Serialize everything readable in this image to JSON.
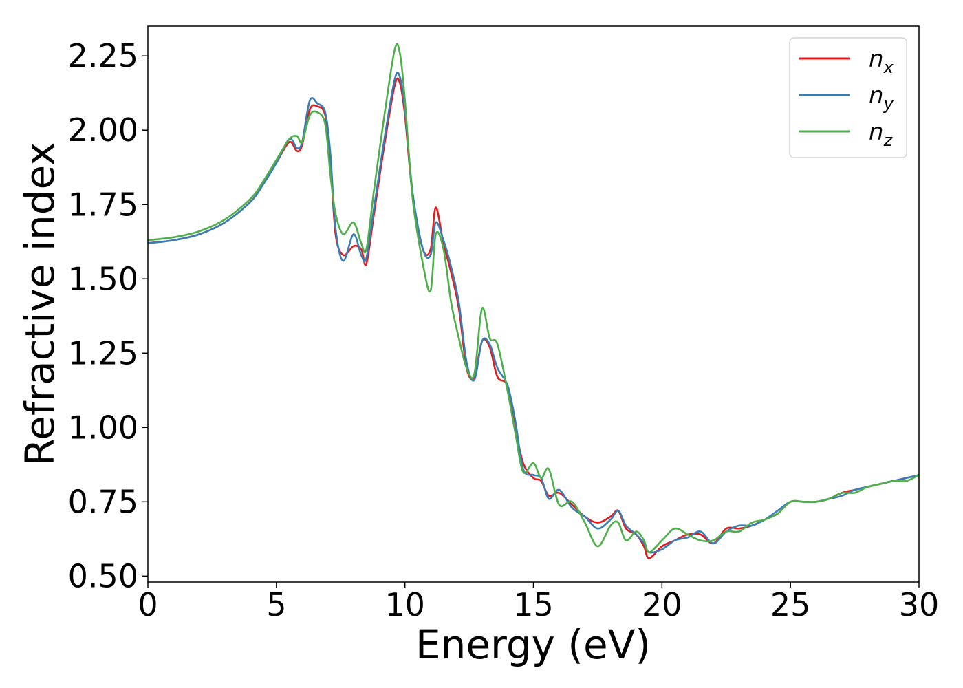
{
  "chart_data": {
    "type": "line",
    "xlabel": "Energy (eV)",
    "ylabel": "Refractive index",
    "xlim": [
      0,
      30
    ],
    "ylim": [
      0.48,
      2.35
    ],
    "xticks": [
      0,
      5,
      10,
      15,
      20,
      25,
      30
    ],
    "xtick_labels": [
      "0",
      "5",
      "10",
      "15",
      "20",
      "25",
      "30"
    ],
    "yticks": [
      0.5,
      0.75,
      1.0,
      1.25,
      1.5,
      1.75,
      2.0,
      2.25
    ],
    "ytick_labels": [
      "0.50",
      "0.75",
      "1.00",
      "1.25",
      "1.50",
      "1.75",
      "2.00",
      "2.25"
    ],
    "grid": false,
    "legend_position": "top-right",
    "series": [
      {
        "name": "n",
        "subscript": "x",
        "color": "#e41a1c",
        "x": [
          0,
          1,
          2,
          3,
          4,
          4.5,
          5,
          5.5,
          5.8,
          6.0,
          6.3,
          6.6,
          6.9,
          7.1,
          7.3,
          7.6,
          8.0,
          8.3,
          8.5,
          8.8,
          9.2,
          9.6,
          9.8,
          10.0,
          10.3,
          10.7,
          11.0,
          11.2,
          11.5,
          11.8,
          12.1,
          12.4,
          12.7,
          13.0,
          13.3,
          13.6,
          14.0,
          14.3,
          14.6,
          15.0,
          15.3,
          15.6,
          16.0,
          16.5,
          17.0,
          17.5,
          18.0,
          18.3,
          18.6,
          19.0,
          19.3,
          19.5,
          20.0,
          20.5,
          21.0,
          21.5,
          22.0,
          22.5,
          23.0,
          23.5,
          24.0,
          24.5,
          25.0,
          25.5,
          26.0,
          26.5,
          27.0,
          27.5,
          28.0,
          28.5,
          29.0,
          29.5,
          30.0
        ],
        "y": [
          1.62,
          1.63,
          1.65,
          1.69,
          1.76,
          1.82,
          1.89,
          1.96,
          1.93,
          1.95,
          2.07,
          2.08,
          2.05,
          1.9,
          1.65,
          1.58,
          1.61,
          1.6,
          1.55,
          1.72,
          1.95,
          2.15,
          2.16,
          2.05,
          1.78,
          1.6,
          1.6,
          1.74,
          1.62,
          1.52,
          1.4,
          1.2,
          1.17,
          1.29,
          1.27,
          1.17,
          1.14,
          1.0,
          0.88,
          0.83,
          0.82,
          0.77,
          0.78,
          0.74,
          0.7,
          0.68,
          0.7,
          0.72,
          0.66,
          0.64,
          0.6,
          0.56,
          0.6,
          0.62,
          0.64,
          0.64,
          0.61,
          0.66,
          0.66,
          0.67,
          0.69,
          0.71,
          0.75,
          0.75,
          0.75,
          0.76,
          0.78,
          0.79,
          0.8,
          0.81,
          0.82,
          0.83,
          0.84
        ]
      },
      {
        "name": "n",
        "subscript": "y",
        "color": "#377eb8",
        "x": [
          0,
          1,
          2,
          3,
          4,
          4.5,
          5,
          5.5,
          5.8,
          6.0,
          6.3,
          6.6,
          6.9,
          7.1,
          7.3,
          7.6,
          8.0,
          8.3,
          8.5,
          8.8,
          9.2,
          9.6,
          9.8,
          10.0,
          10.3,
          10.7,
          11.0,
          11.2,
          11.5,
          11.8,
          12.1,
          12.4,
          12.7,
          13.0,
          13.3,
          13.6,
          14.0,
          14.3,
          14.6,
          15.0,
          15.3,
          15.6,
          16.0,
          16.5,
          17.0,
          17.5,
          18.0,
          18.3,
          18.6,
          19.0,
          19.3,
          19.5,
          20.0,
          20.5,
          21.0,
          21.5,
          22.0,
          22.5,
          23.0,
          23.5,
          24.0,
          24.5,
          25.0,
          25.5,
          26.0,
          26.5,
          27.0,
          27.5,
          28.0,
          28.5,
          29.0,
          29.5,
          30.0
        ],
        "y": [
          1.62,
          1.63,
          1.65,
          1.69,
          1.76,
          1.82,
          1.89,
          1.97,
          1.94,
          1.96,
          2.1,
          2.09,
          2.06,
          1.92,
          1.67,
          1.56,
          1.65,
          1.58,
          1.57,
          1.74,
          1.97,
          2.17,
          2.18,
          2.07,
          1.79,
          1.6,
          1.58,
          1.69,
          1.63,
          1.54,
          1.42,
          1.22,
          1.16,
          1.29,
          1.28,
          1.2,
          1.14,
          1.02,
          0.86,
          0.84,
          0.83,
          0.76,
          0.79,
          0.73,
          0.7,
          0.66,
          0.69,
          0.72,
          0.67,
          0.64,
          0.61,
          0.58,
          0.59,
          0.62,
          0.63,
          0.65,
          0.61,
          0.65,
          0.67,
          0.67,
          0.69,
          0.72,
          0.75,
          0.75,
          0.75,
          0.76,
          0.77,
          0.79,
          0.8,
          0.81,
          0.82,
          0.83,
          0.84
        ]
      },
      {
        "name": "n",
        "subscript": "z",
        "color": "#4daf4a",
        "x": [
          0,
          1,
          2,
          3,
          4,
          4.5,
          5,
          5.5,
          5.8,
          6.0,
          6.3,
          6.6,
          6.9,
          7.1,
          7.3,
          7.6,
          8.0,
          8.3,
          8.5,
          8.8,
          9.2,
          9.6,
          9.8,
          10.0,
          10.3,
          10.7,
          11.0,
          11.2,
          11.5,
          11.8,
          12.1,
          12.4,
          12.7,
          13.0,
          13.3,
          13.6,
          14.0,
          14.3,
          14.6,
          15.0,
          15.3,
          15.6,
          16.0,
          16.5,
          17.0,
          17.5,
          18.0,
          18.3,
          18.6,
          19.0,
          19.3,
          19.5,
          20.0,
          20.5,
          21.0,
          21.5,
          22.0,
          22.5,
          23.0,
          23.5,
          24.0,
          24.5,
          25.0,
          25.5,
          26.0,
          26.5,
          27.0,
          27.5,
          28.0,
          28.5,
          29.0,
          29.5,
          30.0
        ],
        "y": [
          1.63,
          1.64,
          1.66,
          1.7,
          1.77,
          1.83,
          1.9,
          1.97,
          1.98,
          1.96,
          2.05,
          2.06,
          2.02,
          1.85,
          1.72,
          1.65,
          1.69,
          1.62,
          1.6,
          1.8,
          2.05,
          2.27,
          2.26,
          2.1,
          1.77,
          1.55,
          1.46,
          1.65,
          1.6,
          1.42,
          1.3,
          1.2,
          1.18,
          1.4,
          1.3,
          1.28,
          1.12,
          0.98,
          0.85,
          0.88,
          0.83,
          0.86,
          0.74,
          0.75,
          0.68,
          0.6,
          0.67,
          0.68,
          0.62,
          0.65,
          0.62,
          0.58,
          0.62,
          0.66,
          0.64,
          0.62,
          0.62,
          0.65,
          0.65,
          0.68,
          0.69,
          0.71,
          0.75,
          0.75,
          0.75,
          0.76,
          0.78,
          0.78,
          0.8,
          0.81,
          0.82,
          0.82,
          0.84
        ]
      }
    ]
  }
}
